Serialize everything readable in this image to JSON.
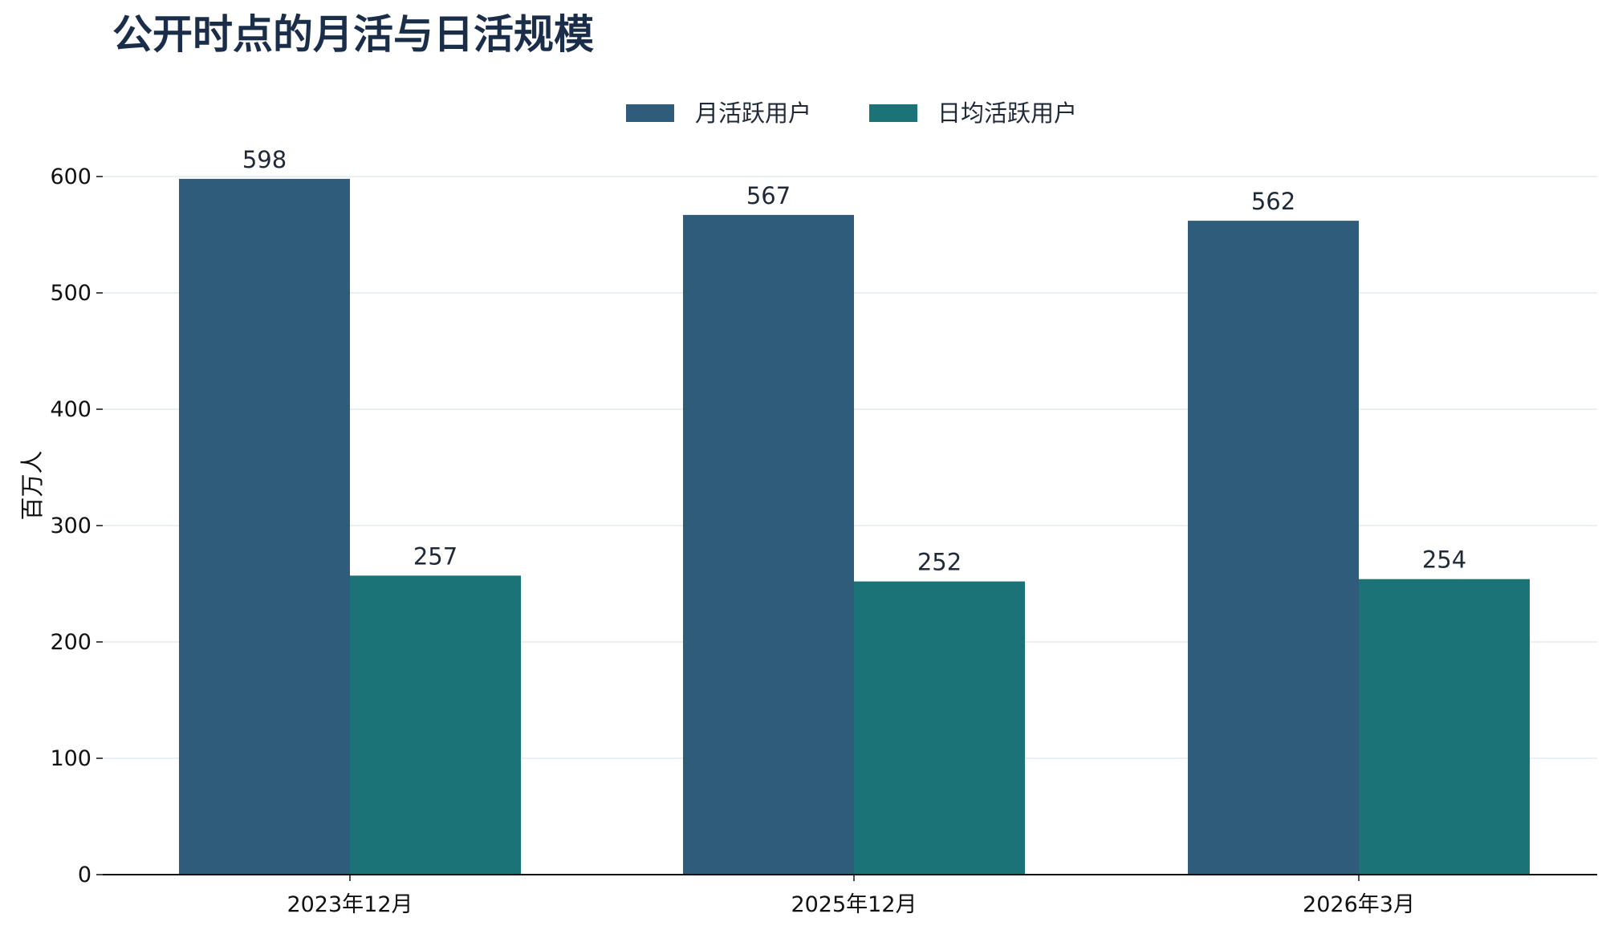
{
  "chart_data": {
    "type": "bar",
    "title": "公开时点的月活与日活规模",
    "ylabel": "百万人",
    "xlabel": "",
    "categories": [
      "2023年12月",
      "2025年12月",
      "2026年3月"
    ],
    "series": [
      {
        "name": "月活跃用户",
        "color": "#2e5c7a",
        "values": [
          598,
          567,
          562
        ]
      },
      {
        "name": "日均活跃用户",
        "color": "#1b7378",
        "values": [
          257,
          252,
          254
        ]
      }
    ],
    "ylim": [
      0,
      600
    ],
    "yticks": [
      0,
      100,
      200,
      300,
      400,
      500,
      600
    ],
    "grid": true,
    "legend_position": "top-center"
  },
  "colors": {
    "title": "#1a2e4a",
    "text": "#1f2937",
    "grid": "#eceff2",
    "axis": "#111111"
  }
}
